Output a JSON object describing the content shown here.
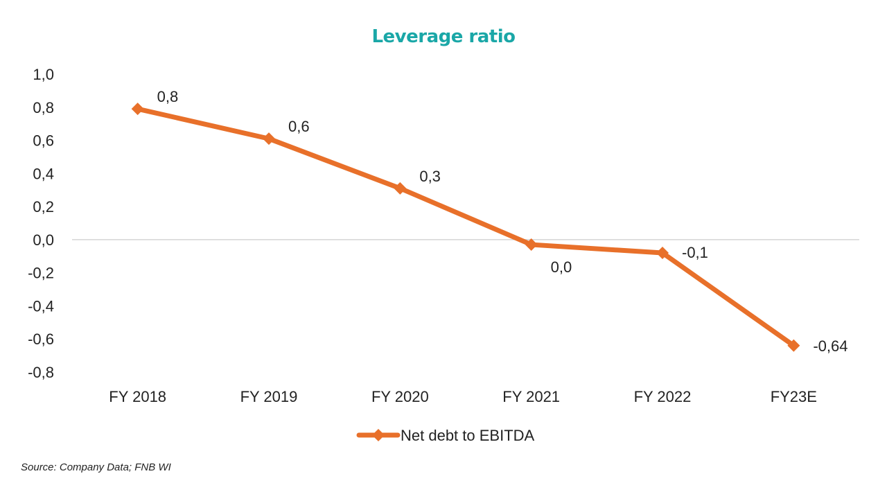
{
  "chart_data": {
    "type": "line",
    "title": "Leverage ratio",
    "categories": [
      "FY 2018",
      "FY 2019",
      "FY 2020",
      "FY 2021",
      "FY 2022",
      "FY23E"
    ],
    "series": [
      {
        "name": "Net debt to EBITDA",
        "values": [
          0.79,
          0.61,
          0.31,
          -0.03,
          -0.08,
          -0.64
        ],
        "data_labels": [
          "0,8",
          "0,6",
          "0,3",
          "0,0",
          "-0,1",
          "-0,64"
        ],
        "color": "#E8702A"
      }
    ],
    "yticks": [
      1.0,
      0.8,
      0.6,
      0.4,
      0.2,
      0.0,
      -0.2,
      -0.4,
      -0.6,
      -0.8
    ],
    "ytick_labels": [
      "1,0",
      "0,8",
      "0,6",
      "0,4",
      "0,2",
      "0,0",
      "-0,2",
      "-0,4",
      "-0,6",
      "-0,8"
    ],
    "ylim": [
      -0.8,
      1.0
    ],
    "grid": false,
    "zero_line": true,
    "legend_position": "bottom"
  },
  "title_color": "#1AA7A7",
  "source_note": "Source: Company Data; FNB WI"
}
